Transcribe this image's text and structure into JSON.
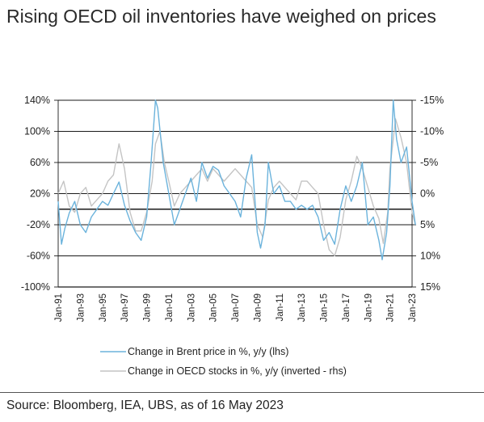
{
  "title": "Rising OECD oil inventories have weighed on prices",
  "source": "Source: Bloomberg, IEA, UBS, as of 16 May 2023",
  "colors": {
    "brent": "#6bb3dc",
    "oecd": "#c4c4c4",
    "grid": "#1a1a1a"
  },
  "chart_data": {
    "type": "line",
    "y_left": {
      "ticks": [
        "140%",
        "100%",
        "60%",
        "20%",
        "-20%",
        "-60%",
        "-100%"
      ],
      "range": [
        -100,
        140
      ]
    },
    "y_right": {
      "ticks": [
        "-15%",
        "-10%",
        "-5%",
        "0%",
        "5%",
        "10%",
        "15%"
      ],
      "range": [
        15,
        -15
      ],
      "inverted": true
    },
    "x_ticks": [
      "Jan-91",
      "Jan-93",
      "Jan-95",
      "Jan-97",
      "Jan-99",
      "Jan-01",
      "Jan-03",
      "Jan-05",
      "Jan-07",
      "Jan-09",
      "Jan-11",
      "Jan-13",
      "Jan-15",
      "Jan-17",
      "Jan-19",
      "Jan-21",
      "Jan-23"
    ],
    "x_range": [
      1991.0,
      2023.0
    ],
    "grid": "horizontal",
    "series": [
      {
        "name": "Change in Brent price in %, y/y (lhs)",
        "axis": "left",
        "x": [
          1991.0,
          1991.3,
          1991.6,
          1992.0,
          1992.5,
          1993.0,
          1993.5,
          1994.0,
          1994.5,
          1995.0,
          1995.5,
          1996.0,
          1996.5,
          1997.0,
          1997.5,
          1998.0,
          1998.5,
          1999.0,
          1999.4,
          1999.8,
          2000.0,
          2000.5,
          2001.0,
          2001.5,
          2002.0,
          2002.5,
          2003.0,
          2003.5,
          2004.0,
          2004.5,
          2005.0,
          2005.5,
          2006.0,
          2006.5,
          2007.0,
          2007.5,
          2008.0,
          2008.5,
          2009.0,
          2009.3,
          2009.7,
          2010.0,
          2010.5,
          2011.0,
          2011.5,
          2012.0,
          2012.5,
          2013.0,
          2013.5,
          2014.0,
          2014.5,
          2015.0,
          2015.5,
          2016.0,
          2016.5,
          2017.0,
          2017.5,
          2018.0,
          2018.5,
          2019.0,
          2019.5,
          2020.0,
          2020.3,
          2020.7,
          2021.0,
          2021.3,
          2021.6,
          2022.0,
          2022.5,
          2023.0,
          2023.3
        ],
        "y": [
          10,
          -45,
          -25,
          -5,
          10,
          -20,
          -30,
          -10,
          0,
          10,
          5,
          20,
          35,
          5,
          -15,
          -30,
          -40,
          -10,
          60,
          140,
          130,
          60,
          20,
          -20,
          0,
          20,
          40,
          10,
          60,
          40,
          55,
          50,
          30,
          20,
          10,
          -10,
          40,
          70,
          -30,
          -50,
          -20,
          60,
          20,
          30,
          10,
          10,
          0,
          5,
          0,
          5,
          -10,
          -40,
          -30,
          -45,
          0,
          30,
          10,
          30,
          60,
          -20,
          -10,
          -40,
          -65,
          -30,
          30,
          140,
          90,
          60,
          80,
          10,
          -20
        ]
      },
      {
        "name": "Change in OECD stocks in %, y/y (inverted - rhs)",
        "axis": "right",
        "x": [
          1991.0,
          1991.5,
          1992.0,
          1992.5,
          1993.0,
          1993.5,
          1994.0,
          1994.5,
          1995.0,
          1995.5,
          1996.0,
          1996.5,
          1997.0,
          1997.5,
          1998.0,
          1998.5,
          1999.0,
          1999.5,
          1999.8,
          2000.2,
          2000.6,
          2001.0,
          2001.5,
          2002.0,
          2002.5,
          2003.0,
          2003.5,
          2004.0,
          2004.5,
          2005.0,
          2005.5,
          2006.0,
          2006.5,
          2007.0,
          2007.5,
          2008.0,
          2008.5,
          2009.0,
          2009.5,
          2010.0,
          2010.5,
          2011.0,
          2011.5,
          2012.0,
          2012.5,
          2013.0,
          2013.5,
          2014.0,
          2014.5,
          2015.0,
          2015.5,
          2016.0,
          2016.5,
          2017.0,
          2017.5,
          2018.0,
          2018.5,
          2019.0,
          2019.5,
          2020.0,
          2020.4,
          2020.8,
          2021.0,
          2021.5,
          2022.0,
          2022.5,
          2023.0,
          2023.3
        ],
        "y": [
          0,
          -2,
          2,
          3,
          0,
          -1,
          2,
          1,
          0,
          -2,
          -3,
          -8,
          -4,
          3,
          6,
          6,
          3,
          -2,
          -8,
          -10,
          -5,
          -2,
          2,
          0,
          -1,
          -2,
          -3,
          -4,
          -2,
          -4,
          -3,
          -2,
          -3,
          -4,
          -3,
          -2,
          -1,
          5,
          7,
          1,
          -1,
          -2,
          -1,
          0,
          1,
          -2,
          -2,
          -1,
          0,
          5,
          9,
          10,
          7,
          1,
          -2,
          -6,
          -4,
          -1,
          2,
          4,
          8,
          3,
          -4,
          -12,
          -9,
          -5,
          3,
          5
        ]
      }
    ]
  },
  "legend": [
    {
      "label": "Change in Brent price in %, y/y (lhs)"
    },
    {
      "label": "Change in OECD stocks in %, y/y (inverted - rhs)"
    }
  ]
}
